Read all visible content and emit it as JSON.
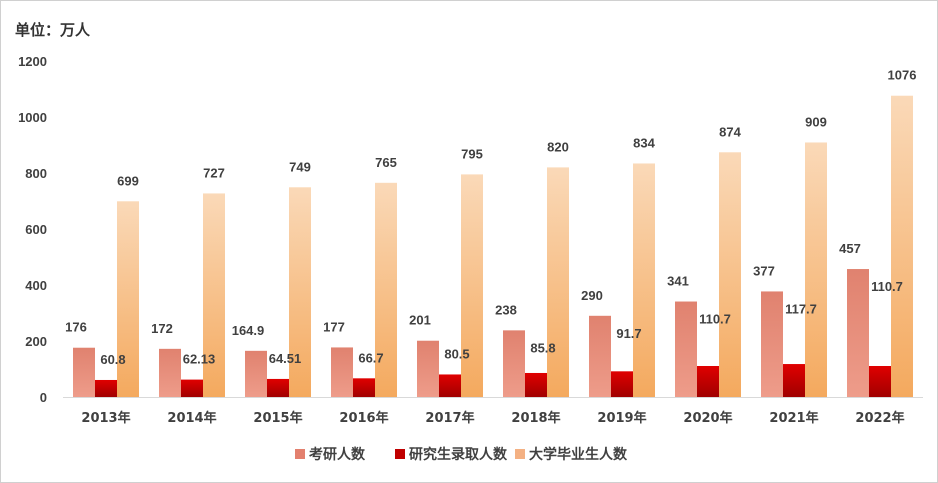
{
  "unit_label": "单位：万人",
  "chart_data": {
    "type": "bar",
    "title": "",
    "xlabel": "",
    "ylabel": "",
    "ylim": [
      0,
      1200
    ],
    "yticks": [
      0,
      200,
      400,
      600,
      800,
      1000,
      1200
    ],
    "grid": false,
    "legend_position": "bottom",
    "categories": [
      "2013年",
      "2014年",
      "2015年",
      "2016年",
      "2017年",
      "2018年",
      "2019年",
      "2020年",
      "2021年",
      "2022年"
    ],
    "series": [
      {
        "name": "考研人数",
        "color": "#E3806E",
        "values": [
          176,
          172,
          164.9,
          177,
          201,
          238,
          290,
          341,
          377,
          457
        ],
        "labels": [
          "176",
          "172",
          "164.9",
          "177",
          "201",
          "238",
          "290",
          "341",
          "377",
          "457"
        ]
      },
      {
        "name": "研究生录取人数",
        "color": "#C00000",
        "values": [
          60.8,
          62.13,
          64.51,
          66.7,
          80.5,
          85.8,
          91.7,
          110.7,
          117.7,
          110.7
        ],
        "labels": [
          "60.8",
          "62.13",
          "64.51",
          "66.7",
          "80.5",
          "85.8",
          "91.7",
          "110.7",
          "117.7",
          "110.7"
        ]
      },
      {
        "name": "大学毕业生人数",
        "color": "#F4B183",
        "values": [
          699,
          727,
          749,
          765,
          795,
          820,
          834,
          874,
          909,
          1076
        ],
        "labels": [
          "699",
          "727",
          "749",
          "765",
          "795",
          "820",
          "834",
          "874",
          "909",
          "1076"
        ]
      }
    ]
  }
}
